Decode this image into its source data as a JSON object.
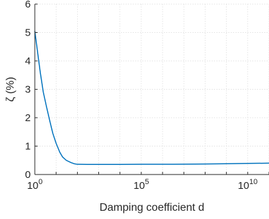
{
  "chart_data": {
    "type": "line",
    "xlabel": "Damping coefficient d",
    "ylabel": "ζ (%)",
    "x_scale": "log",
    "xlim": [
      1,
      100000000000.0
    ],
    "ylim": [
      0,
      6
    ],
    "x_ticks": [
      {
        "value": 1,
        "base": "10",
        "exp": "0"
      },
      {
        "value": 100000,
        "base": "10",
        "exp": "5"
      },
      {
        "value": 10000000000,
        "base": "10",
        "exp": "10"
      }
    ],
    "y_ticks": [
      0,
      1,
      2,
      3,
      4,
      5,
      6
    ],
    "grid": true,
    "line_color": "#0072BD",
    "series": [
      {
        "x": [
          1,
          1.3,
          1.8,
          2.5,
          3.5,
          5,
          7,
          10,
          15,
          20,
          30,
          50,
          70,
          100,
          300,
          1000,
          10000,
          100000,
          1000000,
          10000000,
          100000000,
          1000000000,
          10000000000,
          100000000000
        ],
        "y": [
          5.05,
          4.4,
          3.6,
          2.9,
          2.4,
          1.9,
          1.45,
          1.1,
          0.78,
          0.62,
          0.5,
          0.42,
          0.38,
          0.36,
          0.355,
          0.355,
          0.355,
          0.36,
          0.36,
          0.365,
          0.37,
          0.38,
          0.39,
          0.4
        ]
      }
    ]
  }
}
